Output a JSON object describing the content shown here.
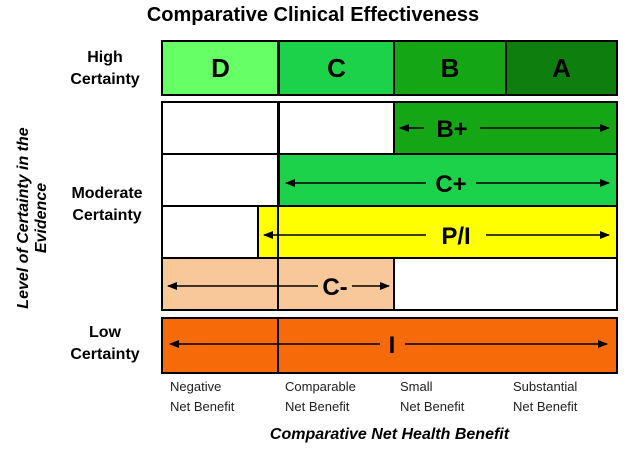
{
  "title": "Comparative Clinical Effectiveness",
  "y_axis_label": "Level of Certainty in the Evidence",
  "x_axis_label": "Comparative Net Health Benefit",
  "row_labels": {
    "high": [
      "High",
      "Certainty"
    ],
    "moderate": [
      "Moderate",
      "Certainty"
    ],
    "low": [
      "Low",
      "Certainty"
    ]
  },
  "high_certainty_cells": [
    {
      "label": "D",
      "color": "#66ff66"
    },
    {
      "label": "C",
      "color": "#1cd24a"
    },
    {
      "label": "B",
      "color": "#14a614"
    },
    {
      "label": "A",
      "color": "#0e7e0e"
    }
  ],
  "ratings": [
    {
      "label": "B+",
      "color": "#14a614"
    },
    {
      "label": "C+",
      "color": "#1cd24a"
    },
    {
      "label": "P/I",
      "color": "#ffff00"
    },
    {
      "label": "C-",
      "color": "#f8c89a"
    },
    {
      "label": "I",
      "color": "#f66a0a"
    }
  ],
  "x_ticks": [
    [
      "Negative",
      "Net Benefit"
    ],
    [
      "Comparable",
      "Net Benefit"
    ],
    [
      "Small",
      "Net Benefit"
    ],
    [
      "Substantial",
      "Net Benefit"
    ]
  ]
}
